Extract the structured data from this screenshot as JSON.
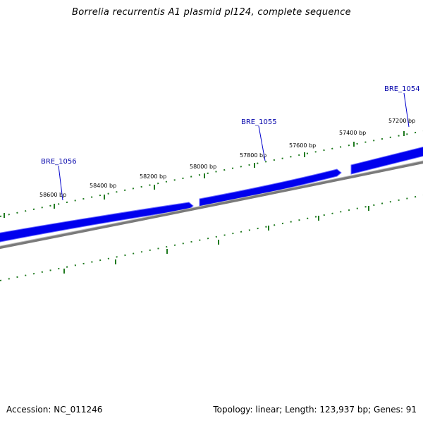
{
  "title": "Borrelia recurrentis A1 plasmid pl124, complete sequence",
  "footer": {
    "accession_text": "Accession: NC_011246",
    "summary_text": "Topology: linear; Length: 123,937 bp; Genes: 91"
  },
  "colors": {
    "gene_fill": "#0000ee",
    "gene_light": "#6b6bff",
    "backbone": "#7a7a7a",
    "tick": "#1f7a1f",
    "gene_label": "#0000aa",
    "leader": "#0000cc"
  },
  "ticks": [
    {
      "label": "57200 bp"
    },
    {
      "label": "57400 bp"
    },
    {
      "label": "57600 bp"
    },
    {
      "label": "57800 bp"
    },
    {
      "label": "58000 bp"
    },
    {
      "label": "58200 bp"
    },
    {
      "label": "58400 bp"
    },
    {
      "label": "58600 bp"
    }
  ],
  "genes": [
    {
      "label": "BRE_1054"
    },
    {
      "label": "BRE_1055"
    },
    {
      "label": "BRE_1056"
    }
  ]
}
